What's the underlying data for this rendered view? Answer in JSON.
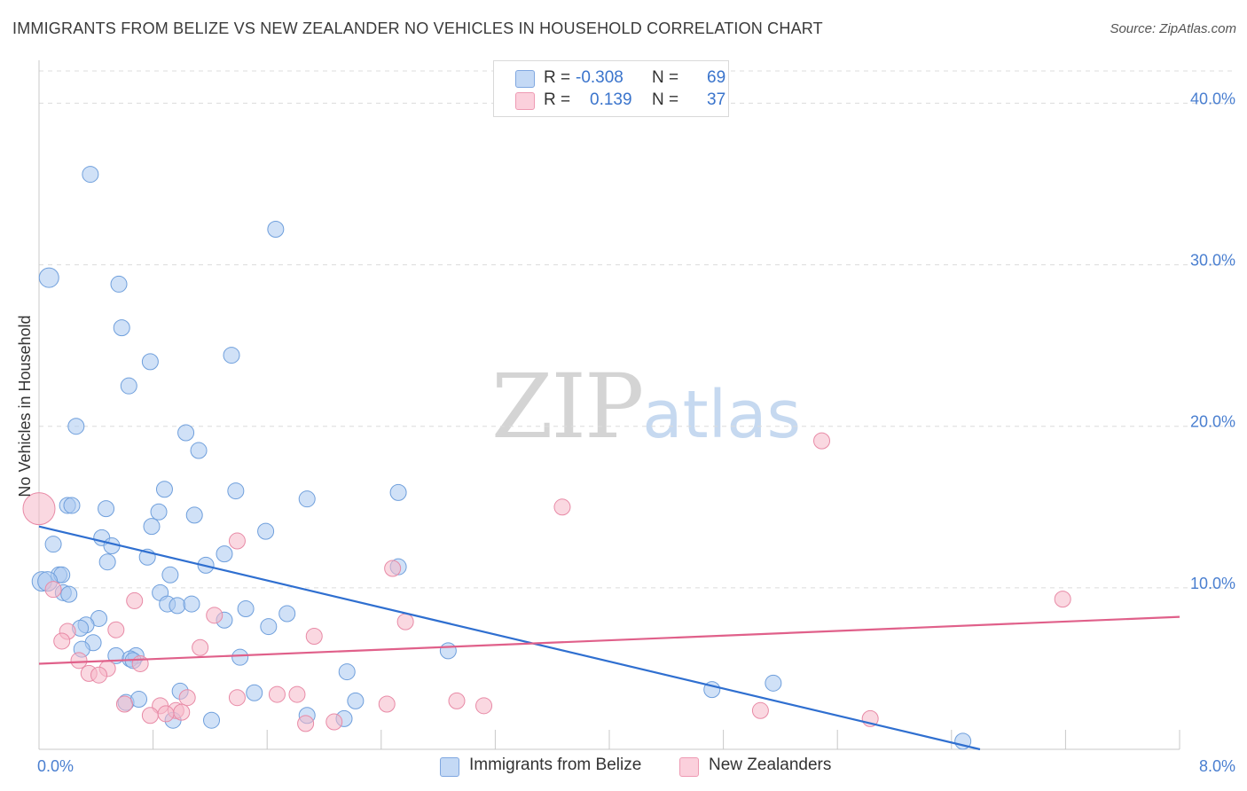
{
  "header": {
    "title": "IMMIGRANTS FROM BELIZE VS NEW ZEALANDER NO VEHICLES IN HOUSEHOLD CORRELATION CHART",
    "source": "Source: ZipAtlas.com"
  },
  "watermark": {
    "zip": "ZIP",
    "atlas": "atlas"
  },
  "legend": {
    "r_label": "R =",
    "n_label": "N =",
    "rows": [
      {
        "r": "-0.308",
        "n": "69",
        "color": "#a9c8f0"
      },
      {
        "r": "0.139",
        "n": "37",
        "color": "#f6b8c9"
      }
    ]
  },
  "bottom_legend": [
    {
      "label": "Immigrants from Belize",
      "color": "#a9c8f0"
    },
    {
      "label": "New Zealanders",
      "color": "#f6b8c9"
    }
  ],
  "chart_data": {
    "type": "scatter",
    "ylabel": "No Vehicles in Household",
    "xlim": [
      0,
      8.0
    ],
    "ylim": [
      0,
      42
    ],
    "x_tick_labels": [
      {
        "value": 0,
        "label": "0.0%"
      },
      {
        "value": 8.0,
        "label": "8.0%"
      }
    ],
    "y_tick_labels": [
      {
        "value": 10,
        "label": "10.0%"
      },
      {
        "value": 20,
        "label": "20.0%"
      },
      {
        "value": 30,
        "label": "30.0%"
      },
      {
        "value": 40,
        "label": "40.0%"
      }
    ],
    "grid": true,
    "series": [
      {
        "name": "Immigrants from Belize",
        "color": "#a9c8f0",
        "stroke": "#6f9fdc",
        "trend": {
          "x0": 0.0,
          "y0": 13.8,
          "x1": 6.6,
          "y1": 0.0,
          "color": "#2f6fd0"
        },
        "points": [
          [
            0.36,
            35.6
          ],
          [
            0.07,
            29.2
          ],
          [
            1.66,
            32.2
          ],
          [
            0.56,
            28.8
          ],
          [
            0.58,
            26.1
          ],
          [
            0.78,
            24.0
          ],
          [
            1.35,
            24.4
          ],
          [
            0.63,
            22.5
          ],
          [
            0.26,
            20.0
          ],
          [
            1.03,
            19.6
          ],
          [
            1.12,
            18.5
          ],
          [
            0.88,
            16.1
          ],
          [
            1.38,
            16.0
          ],
          [
            2.52,
            15.9
          ],
          [
            1.88,
            15.5
          ],
          [
            0.2,
            15.1
          ],
          [
            0.23,
            15.1
          ],
          [
            0.47,
            14.9
          ],
          [
            0.84,
            14.7
          ],
          [
            1.09,
            14.5
          ],
          [
            0.79,
            13.8
          ],
          [
            1.59,
            13.5
          ],
          [
            0.44,
            13.1
          ],
          [
            0.1,
            12.7
          ],
          [
            0.51,
            12.6
          ],
          [
            1.3,
            12.1
          ],
          [
            0.76,
            11.9
          ],
          [
            0.48,
            11.6
          ],
          [
            1.17,
            11.4
          ],
          [
            2.52,
            11.3
          ],
          [
            0.14,
            10.8
          ],
          [
            0.16,
            10.8
          ],
          [
            0.92,
            10.8
          ],
          [
            0.02,
            10.4
          ],
          [
            0.06,
            10.4
          ],
          [
            0.17,
            9.7
          ],
          [
            0.21,
            9.6
          ],
          [
            0.85,
            9.7
          ],
          [
            0.9,
            9.0
          ],
          [
            0.97,
            8.9
          ],
          [
            1.07,
            9.0
          ],
          [
            1.45,
            8.7
          ],
          [
            1.74,
            8.4
          ],
          [
            0.42,
            8.1
          ],
          [
            1.3,
            8.0
          ],
          [
            0.33,
            7.7
          ],
          [
            0.29,
            7.5
          ],
          [
            1.61,
            7.6
          ],
          [
            0.38,
            6.6
          ],
          [
            0.3,
            6.2
          ],
          [
            2.87,
            6.1
          ],
          [
            0.54,
            5.8
          ],
          [
            1.41,
            5.7
          ],
          [
            0.68,
            5.8
          ],
          [
            0.64,
            5.6
          ],
          [
            0.66,
            5.5
          ],
          [
            2.16,
            4.8
          ],
          [
            4.72,
            3.7
          ],
          [
            5.15,
            4.1
          ],
          [
            0.99,
            3.6
          ],
          [
            1.51,
            3.5
          ],
          [
            0.61,
            2.9
          ],
          [
            0.7,
            3.1
          ],
          [
            2.22,
            3.0
          ],
          [
            1.88,
            2.1
          ],
          [
            2.14,
            1.9
          ],
          [
            0.94,
            1.8
          ],
          [
            1.21,
            1.8
          ],
          [
            6.48,
            0.5
          ]
        ]
      },
      {
        "name": "New Zealanders",
        "color": "#f6b8c9",
        "stroke": "#e88aa6",
        "trend": {
          "x0": 0.0,
          "y0": 5.3,
          "x1": 8.0,
          "y1": 8.2,
          "color": "#e0608a"
        },
        "points": [
          [
            0.0,
            14.9
          ],
          [
            5.49,
            19.1
          ],
          [
            3.67,
            15.0
          ],
          [
            1.39,
            12.9
          ],
          [
            2.48,
            11.2
          ],
          [
            7.18,
            9.3
          ],
          [
            0.67,
            9.2
          ],
          [
            0.1,
            9.9
          ],
          [
            1.23,
            8.3
          ],
          [
            2.57,
            7.9
          ],
          [
            0.54,
            7.4
          ],
          [
            0.2,
            7.3
          ],
          [
            1.93,
            7.0
          ],
          [
            0.16,
            6.7
          ],
          [
            1.13,
            6.3
          ],
          [
            0.28,
            5.5
          ],
          [
            0.71,
            5.3
          ],
          [
            0.48,
            5.0
          ],
          [
            0.35,
            4.7
          ],
          [
            0.42,
            4.6
          ],
          [
            1.39,
            3.2
          ],
          [
            1.67,
            3.4
          ],
          [
            1.81,
            3.4
          ],
          [
            1.04,
            3.2
          ],
          [
            2.93,
            3.0
          ],
          [
            3.12,
            2.7
          ],
          [
            2.44,
            2.8
          ],
          [
            0.6,
            2.8
          ],
          [
            0.85,
            2.7
          ],
          [
            0.96,
            2.4
          ],
          [
            1.0,
            2.3
          ],
          [
            0.78,
            2.1
          ],
          [
            0.89,
            2.2
          ],
          [
            5.06,
            2.4
          ],
          [
            5.83,
            1.9
          ],
          [
            2.07,
            1.7
          ],
          [
            1.87,
            1.6
          ]
        ]
      }
    ]
  }
}
